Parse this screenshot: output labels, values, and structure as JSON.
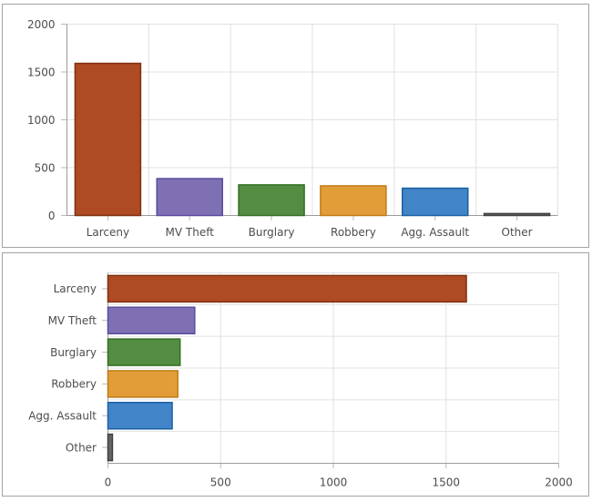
{
  "chart_data": [
    {
      "id": "vertical-bar-chart",
      "type": "bar",
      "orientation": "vertical",
      "title": "",
      "categories": [
        "Larceny",
        "MV Theft",
        "Burglary",
        "Robbery",
        "Agg. Assault",
        "Other"
      ],
      "values": [
        1590,
        385,
        320,
        310,
        285,
        20
      ],
      "value_axis": {
        "min": 0,
        "max": 2000,
        "tick_interval": 500,
        "tick_labels": [
          "0",
          "500",
          "1000",
          "1500",
          "2000"
        ]
      },
      "grid": true,
      "legend": false,
      "bar_fill_colors": [
        "#ae4a24",
        "#7e70b3",
        "#548d42",
        "#e29d39",
        "#4184c7",
        "#666666"
      ],
      "bar_stroke_colors": [
        "#7e300e",
        "#5a4b9e",
        "#336f22",
        "#bf7d15",
        "#1b5fa5",
        "#404040"
      ]
    },
    {
      "id": "horizontal-bar-chart",
      "type": "bar",
      "orientation": "horizontal",
      "title": "",
      "categories": [
        "Larceny",
        "MV Theft",
        "Burglary",
        "Robbery",
        "Agg. Assault",
        "Other"
      ],
      "values": [
        1590,
        385,
        320,
        310,
        285,
        20
      ],
      "value_axis": {
        "min": 0,
        "max": 2000,
        "tick_interval": 500,
        "tick_labels": [
          "0",
          "500",
          "1000",
          "1500",
          "2000"
        ]
      },
      "grid": true,
      "legend": false,
      "bar_fill_colors": [
        "#ae4a24",
        "#7e70b3",
        "#548d42",
        "#e29d39",
        "#4184c7",
        "#666666"
      ],
      "bar_stroke_colors": [
        "#7e300e",
        "#5a4b9e",
        "#336f22",
        "#bf7d15",
        "#1b5fa5",
        "#404040"
      ]
    }
  ],
  "style": {
    "grid_color": "#e1e1e1",
    "axis_color": "#9b9b9b",
    "tick_color": "#b9b9b9",
    "label_color": "#4d4d4d",
    "panel_border_color": "#a3a3a3",
    "background_color": "#ffffff"
  }
}
